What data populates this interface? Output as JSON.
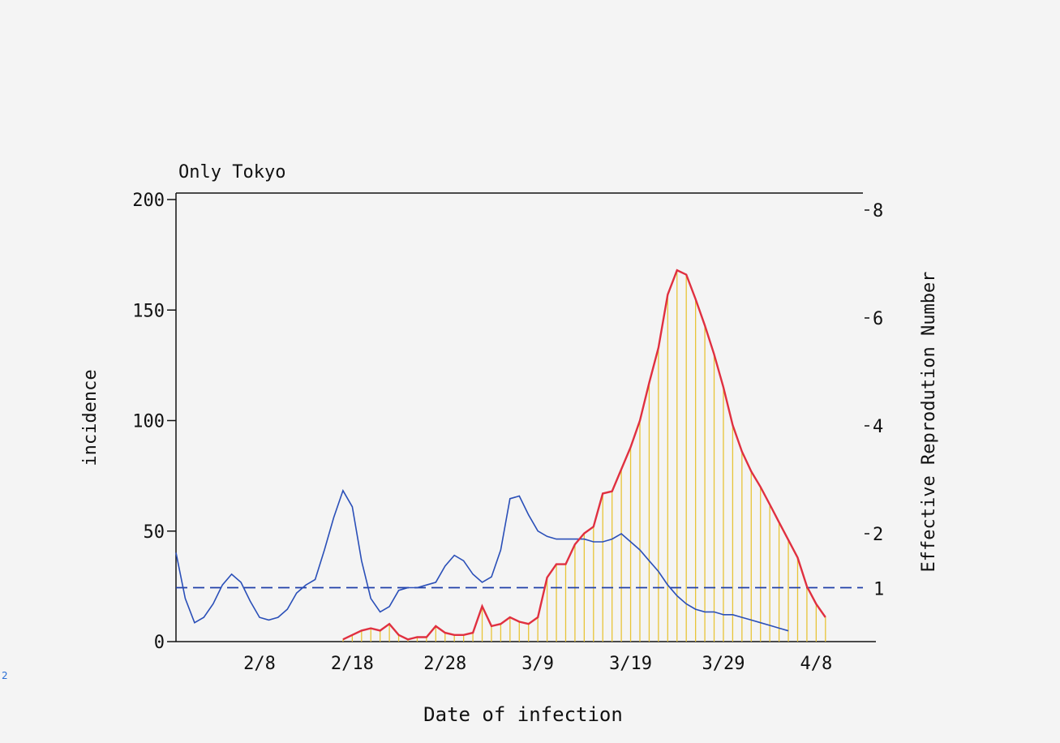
{
  "chart_data": {
    "type": "line",
    "title": "Only Tokyo",
    "xlabel": "Date of infection",
    "ylabel_left": "incidence",
    "ylabel_right": "Effective Reprodution Number",
    "x_tick_labels": [
      "2/8",
      "2/18",
      "2/28",
      "3/9",
      "3/19",
      "3/29",
      "4/8"
    ],
    "ylim_left": [
      0,
      200
    ],
    "yticks_left": [
      "0",
      "50",
      "100",
      "150",
      "200"
    ],
    "ylim_right": [
      0,
      8.2
    ],
    "yticks_right": [
      "2",
      "4",
      "6",
      "8"
    ],
    "reference_line": {
      "value": 1,
      "label": "1",
      "style": "dashed",
      "color": "#1f3fa8"
    },
    "dates": [
      "1/30",
      "1/31",
      "2/1",
      "2/2",
      "2/3",
      "2/4",
      "2/5",
      "2/6",
      "2/7",
      "2/8",
      "2/9",
      "2/10",
      "2/11",
      "2/12",
      "2/13",
      "2/14",
      "2/15",
      "2/16",
      "2/17",
      "2/18",
      "2/19",
      "2/20",
      "2/21",
      "2/22",
      "2/23",
      "2/24",
      "2/25",
      "2/26",
      "2/27",
      "2/28",
      "2/29",
      "3/1",
      "3/2",
      "3/3",
      "3/4",
      "3/5",
      "3/6",
      "3/7",
      "3/8",
      "3/9",
      "3/10",
      "3/11",
      "3/12",
      "3/13",
      "3/14",
      "3/15",
      "3/16",
      "3/17",
      "3/18",
      "3/19",
      "3/20",
      "3/21",
      "3/22",
      "3/23",
      "3/24",
      "3/25",
      "3/26",
      "3/27",
      "3/28",
      "3/29",
      "3/30",
      "3/31",
      "4/1",
      "4/2",
      "4/3",
      "4/4",
      "4/5",
      "4/6",
      "4/7",
      "4/8",
      "4/9",
      "4/10",
      "4/11",
      "4/12"
    ],
    "series": [
      {
        "role": "incidence",
        "color": "#e03040",
        "fill": "#e8c437",
        "axis": "left",
        "values": [
          null,
          null,
          null,
          null,
          null,
          null,
          null,
          null,
          null,
          null,
          null,
          null,
          null,
          null,
          null,
          null,
          null,
          null,
          1,
          3,
          5,
          6,
          5,
          8,
          3,
          1,
          2,
          2,
          7,
          4,
          3,
          3,
          4,
          16,
          7,
          8,
          11,
          9,
          8,
          11,
          29,
          35,
          35,
          44,
          49,
          52,
          67,
          68,
          78,
          88,
          100,
          117,
          133,
          157,
          168,
          166,
          155,
          143,
          130,
          115,
          98,
          86,
          77,
          70,
          62,
          54,
          46,
          38,
          25,
          17,
          11,
          null,
          null,
          null
        ]
      },
      {
        "role": "reproduction_number",
        "color": "#2a4fb8",
        "axis": "right",
        "values": [
          1.65,
          0.8,
          0.35,
          0.45,
          0.7,
          1.05,
          1.25,
          1.1,
          0.75,
          0.45,
          0.4,
          0.45,
          0.6,
          0.9,
          1.05,
          1.15,
          1.7,
          2.3,
          2.8,
          2.5,
          1.5,
          0.8,
          0.55,
          0.65,
          0.95,
          1.0,
          1.0,
          1.05,
          1.1,
          1.4,
          1.6,
          1.5,
          1.25,
          1.1,
          1.2,
          1.7,
          2.65,
          2.7,
          2.35,
          2.05,
          1.95,
          1.9,
          1.9,
          1.9,
          1.9,
          1.85,
          1.85,
          1.9,
          2.0,
          1.85,
          1.7,
          1.5,
          1.3,
          1.05,
          0.85,
          0.7,
          0.6,
          0.55,
          0.55,
          0.5,
          0.5,
          0.45,
          0.4,
          0.35,
          0.3,
          0.25,
          0.2,
          null,
          null,
          null,
          null,
          null,
          null,
          null
        ]
      }
    ],
    "grid": false,
    "legend": "none"
  },
  "corner_mark": "2"
}
